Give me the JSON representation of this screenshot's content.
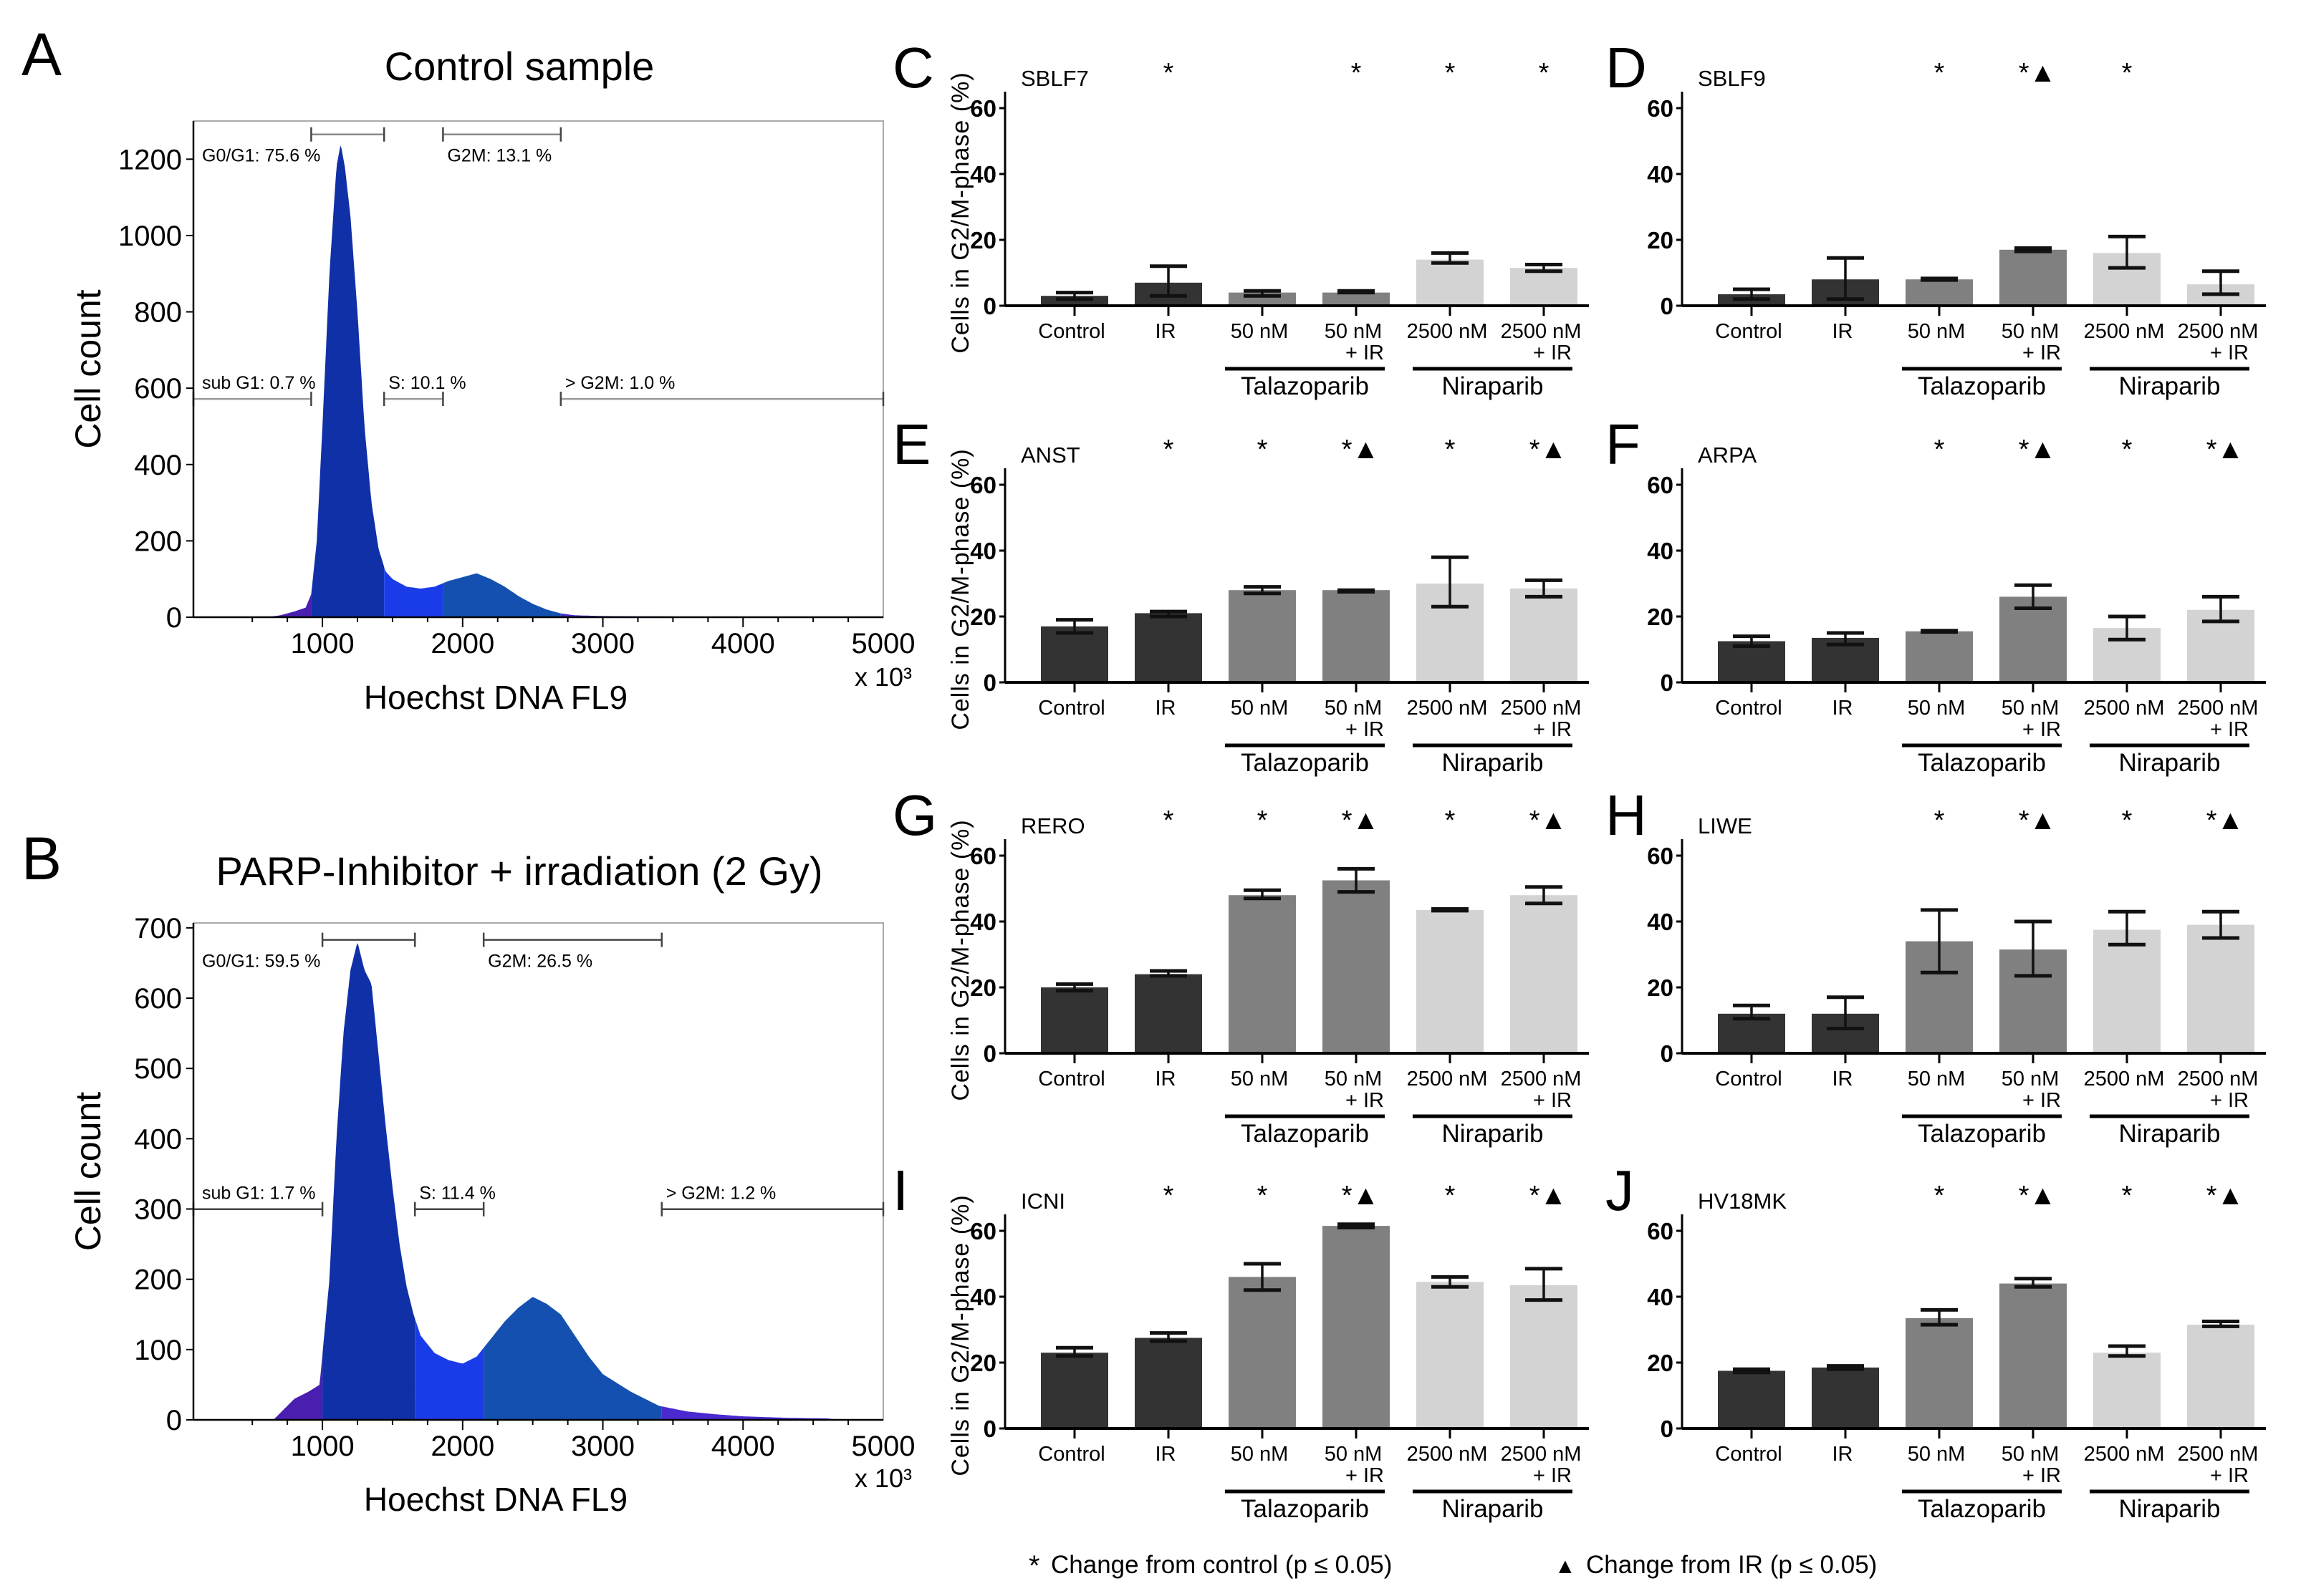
{
  "legend": {
    "star_symbol": "*",
    "star_text": "Change from control (p ≤ 0.05)",
    "triangle_symbol": "▲",
    "triangle_text": "Change from IR (p ≤ 0.05)",
    "marker_color": "#7a7a7a"
  },
  "bar_shared": {
    "ylabel": "Cells in G2/M-phase (%)",
    "categories": [
      {
        "line1": "Control",
        "line2": ""
      },
      {
        "line1": "IR",
        "line2": ""
      },
      {
        "line1": "50 nM",
        "line2": ""
      },
      {
        "line1": "50 nM",
        "line2": "+ IR"
      },
      {
        "line1": "2500 nM",
        "line2": ""
      },
      {
        "line1": "2500 nM",
        "line2": "+ IR"
      }
    ],
    "groups": [
      {
        "label": "Talazoparib",
        "categories": [
          2,
          3
        ]
      },
      {
        "label": "Niraparib",
        "categories": [
          4,
          5
        ]
      }
    ],
    "bar_colors": [
      "#333333",
      "#333333",
      "#808080",
      "#808080",
      "#d3d3d3",
      "#d3d3d3"
    ],
    "ylim": [
      0,
      65
    ],
    "yticks": [
      0,
      20,
      40,
      60
    ]
  },
  "chart_data": [
    {
      "panel": "A",
      "type": "area",
      "title": "Control sample",
      "xlabel": "Hoechst DNA FL9",
      "x_multiplier": "x 10³",
      "ylabel": "Cell count",
      "xlim": [
        80,
        5000
      ],
      "ylim": [
        0,
        1300
      ],
      "xticks": [
        1000,
        2000,
        3000,
        4000,
        5000
      ],
      "yticks": [
        0,
        200,
        400,
        600,
        800,
        1000,
        1200
      ],
      "gates": [
        {
          "label": "sub G1: 0.7 %",
          "range": [
            80,
            920
          ],
          "color": "#4a1fb0"
        },
        {
          "label": "G0/G1: 75.6 %",
          "range": [
            920,
            1440
          ],
          "color": "#1030a8"
        },
        {
          "label": "S: 10.1 %",
          "range": [
            1440,
            1860
          ],
          "color": "#1a3ce8"
        },
        {
          "label": "G2M: 13.1 %",
          "range": [
            1860,
            2700
          ],
          "color": "#1450b0"
        },
        {
          "label": "> G2M: 1.0 %",
          "range": [
            2700,
            5000
          ],
          "color": "#4a2ad0"
        }
      ],
      "histogram": {
        "x": [
          600,
          700,
          800,
          880,
          920,
          960,
          1000,
          1050,
          1100,
          1130,
          1160,
          1200,
          1250,
          1300,
          1350,
          1400,
          1450,
          1500,
          1600,
          1700,
          1800,
          1900,
          2000,
          2100,
          2200,
          2300,
          2400,
          2500,
          2600,
          2700,
          2800,
          3000,
          3500,
          4000,
          4200
        ],
        "y": [
          0,
          5,
          15,
          25,
          60,
          200,
          500,
          900,
          1180,
          1240,
          1180,
          1050,
          800,
          500,
          300,
          180,
          120,
          100,
          80,
          75,
          80,
          95,
          105,
          115,
          100,
          80,
          55,
          35,
          20,
          10,
          5,
          3,
          2,
          1,
          0
        ]
      }
    },
    {
      "panel": "B",
      "type": "area",
      "title": "PARP-Inhibitor + irradiation (2 Gy)",
      "xlabel": "Hoechst DNA FL9",
      "x_multiplier": "x 10³",
      "ylabel": "Cell count",
      "xlim": [
        80,
        5000
      ],
      "ylim": [
        0,
        707
      ],
      "xticks": [
        1000,
        2000,
        3000,
        4000,
        5000
      ],
      "yticks": [
        0,
        100,
        200,
        300,
        400,
        500,
        600,
        700
      ],
      "gates": [
        {
          "label": "sub G1: 1.7 %",
          "range": [
            80,
            1000
          ],
          "color": "#4a1fb0"
        },
        {
          "label": "G0/G1: 59.5 %",
          "range": [
            1000,
            1660
          ],
          "color": "#1030a8"
        },
        {
          "label": "S: 11.4 %",
          "range": [
            1660,
            2150
          ],
          "color": "#1a3ce8"
        },
        {
          "label": "G2M: 26.5 %",
          "range": [
            2150,
            3420
          ],
          "color": "#1450b0"
        },
        {
          "label": "> G2M: 1.2 %",
          "range": [
            3420,
            5000
          ],
          "color": "#4a2ad0"
        }
      ],
      "histogram": {
        "x": [
          650,
          700,
          800,
          900,
          980,
          1050,
          1100,
          1150,
          1200,
          1250,
          1300,
          1350,
          1400,
          1450,
          1500,
          1550,
          1600,
          1650,
          1700,
          1800,
          1900,
          2000,
          2100,
          2200,
          2300,
          2400,
          2500,
          2600,
          2700,
          2800,
          2900,
          3000,
          3200,
          3400,
          3600,
          3800,
          4000,
          4300,
          4600,
          4700
        ],
        "y": [
          0,
          10,
          30,
          40,
          50,
          200,
          400,
          550,
          640,
          680,
          640,
          620,
          520,
          420,
          330,
          250,
          190,
          150,
          120,
          95,
          85,
          80,
          90,
          115,
          140,
          160,
          175,
          165,
          150,
          120,
          90,
          65,
          40,
          20,
          12,
          8,
          5,
          3,
          2,
          0
        ]
      }
    },
    {
      "panel": "C",
      "type": "bar",
      "title": "SBLF7",
      "values": [
        3,
        7,
        4,
        4,
        14,
        11.5
      ],
      "error_low": [
        2,
        3,
        3,
        4,
        13,
        10.5
      ],
      "error_high": [
        4,
        12,
        4.5,
        4.5,
        16,
        12.5
      ],
      "significance": [
        "",
        "*",
        "",
        "*",
        "*",
        "*"
      ]
    },
    {
      "panel": "D",
      "type": "bar",
      "title": "SBLF9",
      "values": [
        3.5,
        8,
        8,
        17,
        16,
        6.5
      ],
      "error_low": [
        2,
        2,
        7.8,
        16.5,
        11.5,
        3.5
      ],
      "error_high": [
        5,
        14.5,
        8.3,
        17.5,
        21,
        10.5
      ],
      "significance": [
        "",
        "",
        "*",
        "*▲",
        "*",
        ""
      ]
    },
    {
      "panel": "E",
      "type": "bar",
      "title": "ANST",
      "values": [
        17,
        21,
        28,
        28,
        30,
        28.5
      ],
      "error_low": [
        15,
        20,
        27,
        27.5,
        23,
        26
      ],
      "error_high": [
        19,
        21.5,
        29,
        28,
        38,
        31
      ],
      "significance": [
        "",
        "*",
        "*",
        "*▲",
        "*",
        "*▲"
      ]
    },
    {
      "panel": "F",
      "type": "bar",
      "title": "ARPA",
      "values": [
        12.5,
        13.5,
        15.5,
        26,
        16.5,
        22
      ],
      "error_low": [
        11,
        11.5,
        15.3,
        22.5,
        13,
        18.5
      ],
      "error_high": [
        14,
        15,
        15.7,
        29.5,
        20,
        26
      ],
      "significance": [
        "",
        "",
        "*",
        "*▲",
        "*",
        "*▲"
      ]
    },
    {
      "panel": "G",
      "type": "bar",
      "title": "RERO",
      "values": [
        20,
        24,
        48,
        52.5,
        43.5,
        48
      ],
      "error_low": [
        19,
        23.5,
        47,
        49,
        43.3,
        45.5
      ],
      "error_high": [
        21,
        25,
        49.5,
        56,
        43.8,
        50.5
      ],
      "significance": [
        "",
        "*",
        "*",
        "*▲",
        "*",
        "*▲"
      ]
    },
    {
      "panel": "H",
      "type": "bar",
      "title": "LIWE",
      "values": [
        12,
        12,
        34,
        31.5,
        37.5,
        39
      ],
      "error_low": [
        10.5,
        7.5,
        24.5,
        23.5,
        33,
        35
      ],
      "error_high": [
        14.5,
        17,
        43.5,
        40,
        43,
        43
      ],
      "significance": [
        "",
        "",
        "*",
        "*▲",
        "*",
        "*▲"
      ]
    },
    {
      "panel": "I",
      "type": "bar",
      "title": "ICNI",
      "values": [
        23,
        27.5,
        46,
        61.5,
        44.5,
        43.5
      ],
      "error_low": [
        22,
        26.5,
        42,
        61,
        43,
        39
      ],
      "error_high": [
        24.5,
        29,
        50,
        62,
        46,
        48.5
      ],
      "significance": [
        "",
        "*",
        "*",
        "*▲",
        "*",
        "*▲"
      ]
    },
    {
      "panel": "J",
      "type": "bar",
      "title": "HV18MK",
      "values": [
        17.5,
        18.5,
        33.5,
        44,
        23,
        31.5
      ],
      "error_low": [
        17,
        18,
        31.5,
        43,
        22,
        31
      ],
      "error_high": [
        18,
        19,
        36,
        45.5,
        25,
        32.5
      ],
      "significance": [
        "",
        "",
        "*",
        "*▲",
        "*",
        "*▲"
      ]
    }
  ]
}
